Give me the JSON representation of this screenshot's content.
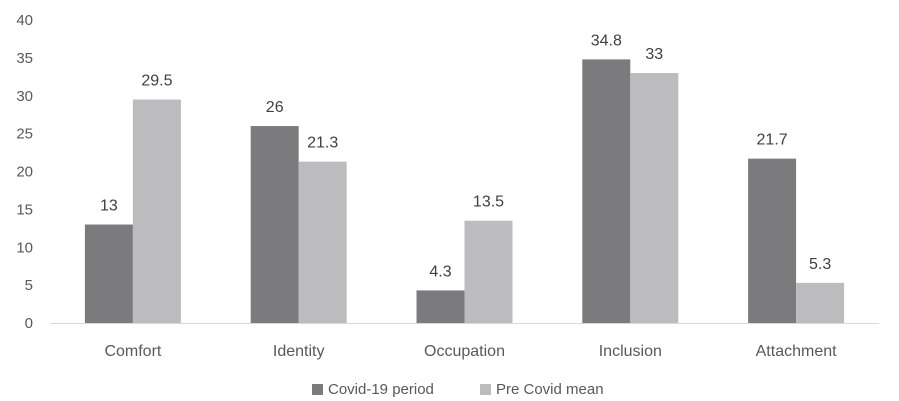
{
  "chart_data": {
    "type": "bar",
    "categories": [
      "Comfort",
      "Identity",
      "Occupation",
      "Inclusion",
      "Attachment"
    ],
    "series": [
      {
        "name": "Covid-19 period",
        "values": [
          13,
          26,
          4.3,
          34.8,
          21.7
        ],
        "color": "#7b7b7d"
      },
      {
        "name": "Pre Covid mean",
        "values": [
          29.5,
          21.3,
          13.5,
          33,
          5.3
        ],
        "color": "#bcbcbe"
      }
    ],
    "data_labels": [
      [
        "13",
        "26",
        "4.3",
        "34.8",
        "21.7"
      ],
      [
        "29.5",
        "21.3",
        "13.5",
        "33",
        "5.3"
      ]
    ],
    "yticks": [
      "0",
      "5",
      "10",
      "15",
      "20",
      "25",
      "30",
      "35",
      "40"
    ],
    "ylim": [
      0,
      40
    ],
    "legend_position": "bottom",
    "grid": false,
    "title": "",
    "xlabel": "",
    "ylabel": ""
  }
}
